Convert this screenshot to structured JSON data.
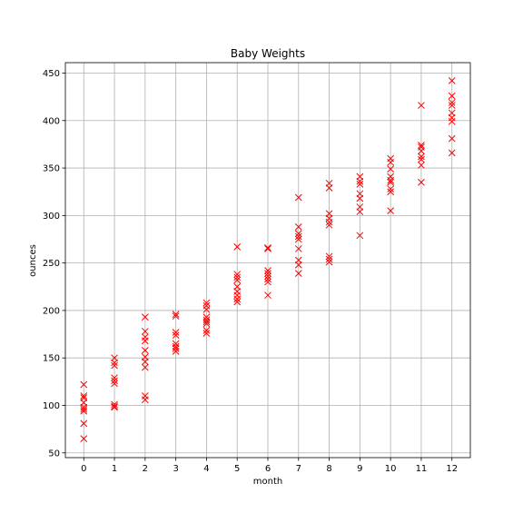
{
  "chart_data": {
    "type": "scatter",
    "title": "Baby Weights",
    "xlabel": "month",
    "ylabel": "ounces",
    "xlim": [
      -0.6,
      12.6
    ],
    "ylim": [
      45,
      461
    ],
    "xticks": [
      0,
      1,
      2,
      3,
      4,
      5,
      6,
      7,
      8,
      9,
      10,
      11,
      12
    ],
    "yticks": [
      50,
      100,
      150,
      200,
      250,
      300,
      350,
      400,
      450
    ],
    "grid": true,
    "marker": "x",
    "color": "#ff0000",
    "series": [
      {
        "points": [
          [
            0,
            122
          ],
          [
            0,
            110
          ],
          [
            0,
            108
          ],
          [
            0,
            103
          ],
          [
            0,
            98
          ],
          [
            0,
            96
          ],
          [
            0,
            94
          ],
          [
            0,
            81
          ],
          [
            0,
            65
          ],
          [
            1,
            150
          ],
          [
            1,
            145
          ],
          [
            1,
            142
          ],
          [
            1,
            129
          ],
          [
            1,
            126
          ],
          [
            1,
            123
          ],
          [
            1,
            101
          ],
          [
            1,
            99
          ],
          [
            1,
            98
          ],
          [
            2,
            193
          ],
          [
            2,
            178
          ],
          [
            2,
            172
          ],
          [
            2,
            168
          ],
          [
            2,
            158
          ],
          [
            2,
            151
          ],
          [
            2,
            146
          ],
          [
            2,
            140
          ],
          [
            2,
            110
          ],
          [
            2,
            106
          ],
          [
            3,
            196
          ],
          [
            3,
            194
          ],
          [
            3,
            177
          ],
          [
            3,
            174
          ],
          [
            3,
            165
          ],
          [
            3,
            162
          ],
          [
            3,
            160
          ],
          [
            3,
            157
          ],
          [
            4,
            208
          ],
          [
            4,
            205
          ],
          [
            4,
            201
          ],
          [
            4,
            193
          ],
          [
            4,
            190
          ],
          [
            4,
            188
          ],
          [
            4,
            186
          ],
          [
            4,
            179
          ],
          [
            4,
            176
          ],
          [
            5,
            267
          ],
          [
            5,
            238
          ],
          [
            5,
            235
          ],
          [
            5,
            232
          ],
          [
            5,
            225
          ],
          [
            5,
            220
          ],
          [
            5,
            216
          ],
          [
            5,
            212
          ],
          [
            5,
            209
          ],
          [
            6,
            266
          ],
          [
            6,
            265
          ],
          [
            6,
            242
          ],
          [
            6,
            239
          ],
          [
            6,
            236
          ],
          [
            6,
            233
          ],
          [
            6,
            230
          ],
          [
            6,
            216
          ],
          [
            7,
            319
          ],
          [
            7,
            288
          ],
          [
            7,
            281
          ],
          [
            7,
            278
          ],
          [
            7,
            275
          ],
          [
            7,
            265
          ],
          [
            7,
            253
          ],
          [
            7,
            248
          ],
          [
            7,
            239
          ],
          [
            8,
            334
          ],
          [
            8,
            329
          ],
          [
            8,
            302
          ],
          [
            8,
            297
          ],
          [
            8,
            293
          ],
          [
            8,
            290
          ],
          [
            8,
            257
          ],
          [
            8,
            254
          ],
          [
            8,
            251
          ],
          [
            9,
            341
          ],
          [
            9,
            336
          ],
          [
            9,
            333
          ],
          [
            9,
            323
          ],
          [
            9,
            318
          ],
          [
            9,
            309
          ],
          [
            9,
            304
          ],
          [
            9,
            279
          ],
          [
            10,
            360
          ],
          [
            10,
            356
          ],
          [
            10,
            349
          ],
          [
            10,
            341
          ],
          [
            10,
            337
          ],
          [
            10,
            335
          ],
          [
            10,
            328
          ],
          [
            10,
            325
          ],
          [
            10,
            305
          ],
          [
            11,
            416
          ],
          [
            11,
            374
          ],
          [
            11,
            372
          ],
          [
            11,
            368
          ],
          [
            11,
            362
          ],
          [
            11,
            359
          ],
          [
            11,
            353
          ],
          [
            11,
            335
          ],
          [
            12,
            442
          ],
          [
            12,
            426
          ],
          [
            12,
            419
          ],
          [
            12,
            416
          ],
          [
            12,
            408
          ],
          [
            12,
            403
          ],
          [
            12,
            399
          ],
          [
            12,
            381
          ],
          [
            12,
            366
          ]
        ]
      }
    ]
  }
}
